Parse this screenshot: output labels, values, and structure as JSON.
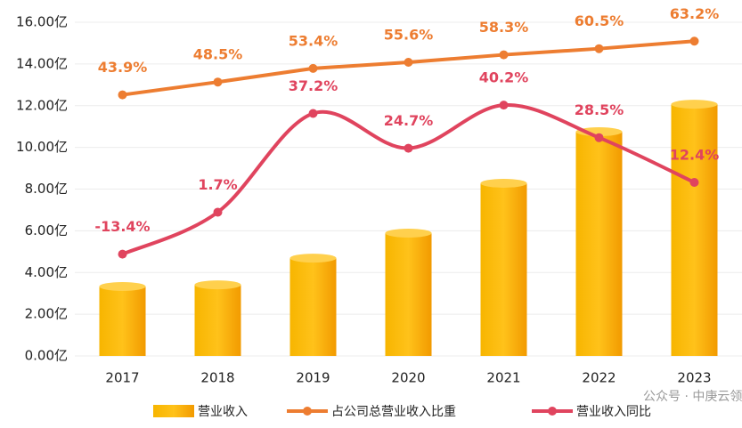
{
  "chart_data": {
    "type": "combo",
    "categories": [
      "2017",
      "2018",
      "2019",
      "2020",
      "2021",
      "2022",
      "2023"
    ],
    "series": [
      {
        "name": "营业收入",
        "type": "bar",
        "color": "#f5a800",
        "values": [
          3.33,
          3.41,
          4.69,
          5.89,
          8.28,
          10.75,
          12.07
        ]
      },
      {
        "name": "占公司总营业收入比重",
        "type": "line",
        "axis": "y2",
        "color": "#ed7d31",
        "values": [
          43.9,
          48.5,
          53.4,
          55.6,
          58.3,
          60.5,
          63.2
        ],
        "value_labels": [
          "43.9%",
          "48.5%",
          "53.4%",
          "55.6%",
          "58.3%",
          "60.5%",
          "63.2%"
        ]
      },
      {
        "name": "营业收入同比",
        "type": "line",
        "axis": "y2",
        "smooth": true,
        "color": "#e0445e",
        "values": [
          -13.4,
          1.7,
          37.2,
          24.7,
          40.2,
          28.5,
          12.4
        ],
        "value_labels": [
          "-13.4%",
          "1.7%",
          "37.2%",
          "24.7%",
          "40.2%",
          "28.5%",
          "12.4%"
        ]
      }
    ],
    "ylim": [
      0,
      16
    ],
    "yticks": [
      {
        "value": 0,
        "label": "0.00亿"
      },
      {
        "value": 2,
        "label": "2.00亿"
      },
      {
        "value": 4,
        "label": "4.00亿"
      },
      {
        "value": 6,
        "label": "6.00亿"
      },
      {
        "value": 8,
        "label": "8.00亿"
      },
      {
        "value": 10,
        "label": "10.00亿"
      },
      {
        "value": 12,
        "label": "12.00亿"
      },
      {
        "value": 14,
        "label": "14.00亿"
      },
      {
        "value": 16,
        "label": "16.00亿"
      }
    ],
    "y2lim": [
      -50,
      70
    ],
    "grid": true,
    "legend": "bottom",
    "watermark": "公众号 · 中庚云领"
  }
}
